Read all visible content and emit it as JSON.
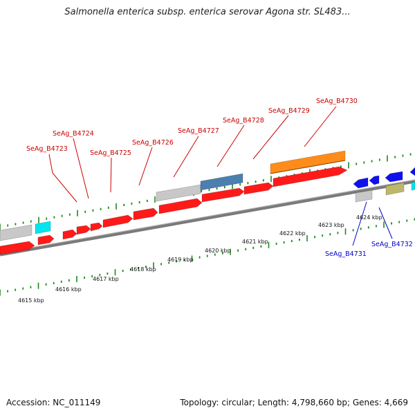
{
  "title": "Salmonella enterica subsp. enterica serovar Agona str. SL483...",
  "footer": {
    "accession_text": "Accession: NC_011149",
    "topology_text": "Topology: circular; Length: 4,798,660 bp; Genes: 4,669"
  },
  "colors": {
    "red_gene": "#ff1a1a",
    "gray_gene": "#c8c8c8",
    "cyan_gene": "#00e5ee",
    "steelblue_gene": "#4a7fb0",
    "orange_gene": "#ff8c1a",
    "blue_gene": "#1010ee",
    "khaki_gene": "#bdb76b",
    "axis": "#808080",
    "tick": "#1a8a1a",
    "top_label": "#cc0000",
    "bottom_label": "#0000cc"
  },
  "kbp_labels": [
    "4615 kbp",
    "4616 kbp",
    "4617 kbp",
    "4618 kbp",
    "4619 kbp",
    "4620 kbp",
    "4621 kbp",
    "4622 kbp",
    "4623 kbp",
    "4624 kbp"
  ],
  "gene_labels_top": [
    "SeAg_B4723",
    "SeAg_B4724",
    "SeAg_B4725",
    "SeAg_B4726",
    "SeAg_B4727",
    "SeAg_B4728",
    "SeAg_B4729",
    "SeAg_B4730"
  ],
  "gene_labels_bottom": [
    "SeAg_B4731",
    "SeAg_B4732"
  ]
}
